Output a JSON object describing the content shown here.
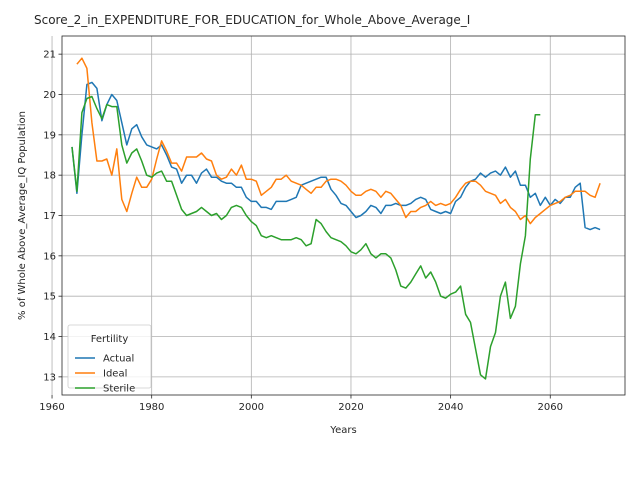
{
  "chart_data": {
    "type": "line",
    "title": "Score_2_in_EXPENDITURE_FOR_EDUCATION_for_Whole_Above_Average_I",
    "xlabel": "Years",
    "ylabel": "% of Whole Above_Average_IQ Population",
    "xlim": [
      1962,
      2075
    ],
    "ylim": [
      12.55,
      21.45
    ],
    "xticks": [
      1960,
      1980,
      2000,
      2020,
      2040,
      2060
    ],
    "yticks": [
      13,
      14,
      15,
      16,
      17,
      18,
      19,
      20,
      21
    ],
    "grid": true,
    "legend": {
      "title": "Fertility",
      "position": "lower-left"
    },
    "series": [
      {
        "name": "Actual",
        "color": "#1f77b4",
        "x": [
          1964,
          1965,
          1966,
          1967,
          1968,
          1969,
          1970,
          1971,
          1972,
          1973,
          1974,
          1975,
          1976,
          1977,
          1978,
          1979,
          1980,
          1981,
          1982,
          1983,
          1984,
          1985,
          1986,
          1987,
          1988,
          1989,
          1990,
          1991,
          1992,
          1993,
          1994,
          1995,
          1996,
          1997,
          1998,
          1999,
          2000,
          2001,
          2002,
          2003,
          2004,
          2005,
          2006,
          2007,
          2008,
          2009,
          2010,
          2011,
          2012,
          2013,
          2014,
          2015,
          2016,
          2017,
          2018,
          2019,
          2020,
          2021,
          2022,
          2023,
          2024,
          2025,
          2026,
          2027,
          2028,
          2029,
          2030,
          2031,
          2032,
          2033,
          2034,
          2035,
          2036,
          2037,
          2038,
          2039,
          2040,
          2041,
          2042,
          2043,
          2044,
          2045,
          2046,
          2047,
          2048,
          2049,
          2050,
          2051,
          2052,
          2053,
          2054,
          2055,
          2056,
          2057,
          2058,
          2059,
          2060,
          2061,
          2062,
          2063,
          2064,
          2065,
          2066,
          2067,
          2068,
          2069,
          2070
        ],
        "values": [
          18.7,
          17.55,
          19.0,
          20.25,
          20.3,
          20.15,
          19.35,
          19.75,
          20.0,
          19.85,
          19.3,
          18.75,
          19.15,
          19.25,
          18.95,
          18.75,
          18.7,
          18.65,
          18.75,
          18.5,
          18.2,
          18.15,
          17.8,
          18.0,
          18.0,
          17.8,
          18.05,
          18.15,
          17.95,
          17.95,
          17.85,
          17.8,
          17.8,
          17.7,
          17.7,
          17.45,
          17.35,
          17.35,
          17.2,
          17.2,
          17.15,
          17.35,
          17.35,
          17.35,
          17.4,
          17.45,
          17.75,
          17.8,
          17.85,
          17.9,
          17.95,
          17.95,
          17.65,
          17.5,
          17.3,
          17.25,
          17.1,
          16.95,
          17.0,
          17.1,
          17.25,
          17.2,
          17.05,
          17.25,
          17.25,
          17.3,
          17.25,
          17.25,
          17.3,
          17.4,
          17.45,
          17.4,
          17.15,
          17.1,
          17.05,
          17.1,
          17.05,
          17.35,
          17.45,
          17.7,
          17.85,
          17.9,
          18.05,
          17.95,
          18.05,
          18.1,
          18.0,
          18.2,
          17.95,
          18.1,
          17.75,
          17.75,
          17.45,
          17.55,
          17.25,
          17.45,
          17.25,
          17.4,
          17.3,
          17.45,
          17.45,
          17.7,
          17.8,
          16.7,
          16.65,
          16.7,
          16.65
        ]
      },
      {
        "name": "Ideal",
        "color": "#ff7f0e",
        "x": [
          1965,
          1966,
          1967,
          1968,
          1969,
          1970,
          1971,
          1972,
          1973,
          1974,
          1975,
          1976,
          1977,
          1978,
          1979,
          1980,
          1981,
          1982,
          1983,
          1984,
          1985,
          1986,
          1987,
          1988,
          1989,
          1990,
          1991,
          1992,
          1993,
          1994,
          1995,
          1996,
          1997,
          1998,
          1999,
          2000,
          2001,
          2002,
          2003,
          2004,
          2005,
          2006,
          2007,
          2008,
          2009,
          2010,
          2011,
          2012,
          2013,
          2014,
          2015,
          2016,
          2017,
          2018,
          2019,
          2020,
          2021,
          2022,
          2023,
          2024,
          2025,
          2026,
          2027,
          2028,
          2029,
          2030,
          2031,
          2032,
          2033,
          2034,
          2035,
          2036,
          2037,
          2038,
          2039,
          2040,
          2041,
          2042,
          2043,
          2044,
          2045,
          2046,
          2047,
          2048,
          2049,
          2050,
          2051,
          2052,
          2053,
          2054,
          2055,
          2056,
          2057,
          2058,
          2059,
          2060,
          2061,
          2062,
          2063,
          2064,
          2065,
          2066,
          2067,
          2068,
          2069,
          2070
        ],
        "values": [
          20.75,
          20.9,
          20.65,
          19.3,
          18.35,
          18.35,
          18.4,
          18.0,
          18.65,
          17.4,
          17.1,
          17.55,
          17.95,
          17.7,
          17.7,
          17.9,
          18.4,
          18.85,
          18.6,
          18.3,
          18.3,
          18.1,
          18.45,
          18.45,
          18.45,
          18.55,
          18.4,
          18.35,
          18.0,
          17.9,
          17.95,
          18.15,
          18.0,
          18.25,
          17.9,
          17.9,
          17.85,
          17.5,
          17.6,
          17.7,
          17.9,
          17.9,
          18.0,
          17.85,
          17.8,
          17.75,
          17.65,
          17.55,
          17.7,
          17.7,
          17.85,
          17.9,
          17.9,
          17.85,
          17.75,
          17.6,
          17.5,
          17.5,
          17.6,
          17.65,
          17.6,
          17.45,
          17.6,
          17.55,
          17.4,
          17.25,
          16.95,
          17.1,
          17.1,
          17.2,
          17.25,
          17.35,
          17.25,
          17.3,
          17.25,
          17.3,
          17.45,
          17.65,
          17.8,
          17.85,
          17.85,
          17.75,
          17.6,
          17.55,
          17.5,
          17.3,
          17.4,
          17.2,
          17.1,
          16.9,
          17.0,
          16.8,
          16.95,
          17.05,
          17.15,
          17.25,
          17.3,
          17.35,
          17.45,
          17.5,
          17.6,
          17.6,
          17.6,
          17.5,
          17.45,
          17.8
        ]
      },
      {
        "name": "Sterile",
        "color": "#2ca02c",
        "x": [
          1964,
          1965,
          1966,
          1967,
          1968,
          1969,
          1970,
          1971,
          1972,
          1973,
          1974,
          1975,
          1976,
          1977,
          1978,
          1979,
          1980,
          1981,
          1982,
          1983,
          1984,
          1985,
          1986,
          1987,
          1988,
          1989,
          1990,
          1991,
          1992,
          1993,
          1994,
          1995,
          1996,
          1997,
          1998,
          1999,
          2000,
          2001,
          2002,
          2003,
          2004,
          2005,
          2006,
          2007,
          2008,
          2009,
          2010,
          2011,
          2012,
          2013,
          2014,
          2015,
          2016,
          2017,
          2018,
          2019,
          2020,
          2021,
          2022,
          2023,
          2024,
          2025,
          2026,
          2027,
          2028,
          2029,
          2030,
          2031,
          2032,
          2033,
          2034,
          2035,
          2036,
          2037,
          2038,
          2039,
          2040,
          2041,
          2042,
          2043,
          2044,
          2045,
          2046,
          2047,
          2048,
          2049,
          2050,
          2051,
          2052,
          2053,
          2054,
          2055,
          2056,
          2057,
          2058
        ],
        "values": [
          18.7,
          17.6,
          19.55,
          19.9,
          19.95,
          19.65,
          19.4,
          19.75,
          19.7,
          19.7,
          18.75,
          18.3,
          18.55,
          18.65,
          18.35,
          18.0,
          17.95,
          18.05,
          18.1,
          17.85,
          17.85,
          17.5,
          17.15,
          17.0,
          17.05,
          17.1,
          17.2,
          17.1,
          17.0,
          17.05,
          16.9,
          17.0,
          17.2,
          17.25,
          17.2,
          17.0,
          16.85,
          16.75,
          16.5,
          16.45,
          16.5,
          16.45,
          16.4,
          16.4,
          16.4,
          16.45,
          16.4,
          16.25,
          16.3,
          16.9,
          16.8,
          16.6,
          16.45,
          16.4,
          16.35,
          16.25,
          16.1,
          16.05,
          16.15,
          16.3,
          16.05,
          15.95,
          16.05,
          16.05,
          15.95,
          15.65,
          15.25,
          15.2,
          15.35,
          15.55,
          15.75,
          15.45,
          15.6,
          15.35,
          15.0,
          14.95,
          15.05,
          15.1,
          15.25,
          14.55,
          14.35,
          13.7,
          13.05,
          12.95,
          13.75,
          14.1,
          15.0,
          15.35,
          14.45,
          14.75,
          15.8,
          16.5,
          18.4,
          19.5,
          19.5
        ]
      }
    ]
  }
}
